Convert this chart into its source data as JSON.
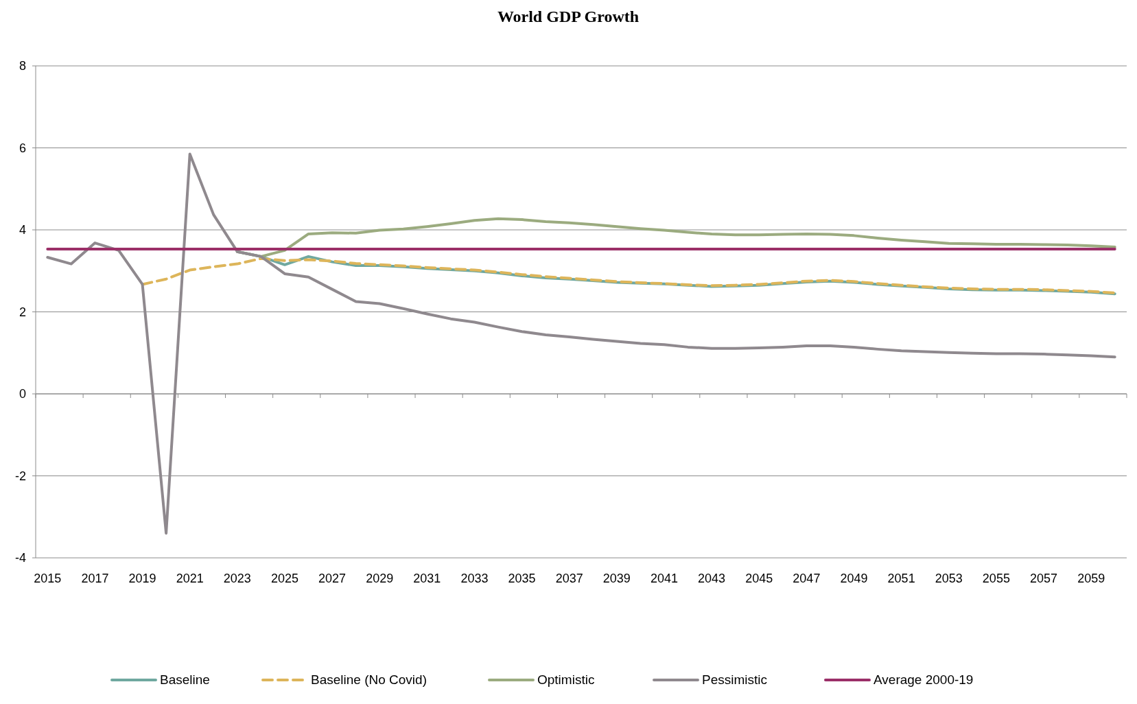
{
  "chart_data": {
    "type": "line",
    "title": "World GDP Growth",
    "categories": [
      "2015",
      null,
      "2017",
      null,
      "2019",
      null,
      "2021",
      null,
      "2023",
      null,
      "2025",
      null,
      "2027",
      null,
      "2029",
      null,
      "2031",
      null,
      "2033",
      null,
      "2035",
      null,
      "2037",
      null,
      "2039",
      null,
      "2041",
      null,
      "2043",
      null,
      "2045",
      null,
      "2047",
      null,
      "2049",
      null,
      "2051",
      null,
      "2053",
      null,
      "2055",
      null,
      "2057",
      null,
      "2059",
      null
    ],
    "ylim": [
      -4,
      8
    ],
    "yticks": [
      -4,
      -2,
      0,
      2,
      4,
      6,
      8
    ],
    "grid": "y",
    "legend": "bottom",
    "marker": "none",
    "series": [
      {
        "name": "Baseline",
        "color": "#6fa8a0",
        "values": [
          null,
          null,
          null,
          null,
          null,
          null,
          null,
          null,
          3.47,
          3.35,
          3.15,
          3.35,
          3.22,
          3.13,
          3.13,
          3.1,
          3.06,
          3.03,
          3.0,
          2.95,
          2.88,
          2.83,
          2.8,
          2.76,
          2.72,
          2.7,
          2.68,
          2.65,
          2.62,
          2.63,
          2.65,
          2.69,
          2.73,
          2.75,
          2.72,
          2.67,
          2.63,
          2.6,
          2.56,
          2.54,
          2.53,
          2.53,
          2.52,
          2.5,
          2.48,
          2.44
        ]
      },
      {
        "name": "Baseline (No Covid)",
        "color": "#ddb55a",
        "line_style": "dashed",
        "values": [
          null,
          null,
          null,
          null,
          2.67,
          2.8,
          3.02,
          3.1,
          3.17,
          3.3,
          3.25,
          3.27,
          3.24,
          3.18,
          3.15,
          3.12,
          3.08,
          3.05,
          3.02,
          2.97,
          2.91,
          2.86,
          2.82,
          2.78,
          2.74,
          2.71,
          2.69,
          2.66,
          2.64,
          2.65,
          2.67,
          2.71,
          2.75,
          2.77,
          2.74,
          2.69,
          2.65,
          2.61,
          2.58,
          2.56,
          2.55,
          2.55,
          2.54,
          2.52,
          2.5,
          2.46
        ]
      },
      {
        "name": "Optimistic",
        "color": "#9bab7f",
        "values": [
          null,
          null,
          null,
          null,
          null,
          null,
          null,
          null,
          3.47,
          3.35,
          3.5,
          3.9,
          3.93,
          3.92,
          3.99,
          4.02,
          4.08,
          4.15,
          4.23,
          4.27,
          4.25,
          4.2,
          4.17,
          4.13,
          4.08,
          4.03,
          3.99,
          3.94,
          3.9,
          3.88,
          3.88,
          3.89,
          3.9,
          3.89,
          3.86,
          3.8,
          3.75,
          3.71,
          3.67,
          3.66,
          3.65,
          3.65,
          3.64,
          3.63,
          3.61,
          3.58
        ]
      },
      {
        "name": "Pessimistic",
        "color": "#8f898e",
        "values": [
          3.33,
          3.17,
          3.68,
          3.5,
          2.67,
          -3.4,
          5.85,
          4.37,
          3.47,
          3.35,
          2.93,
          2.85,
          2.55,
          2.25,
          2.2,
          2.08,
          1.95,
          1.83,
          1.75,
          1.63,
          1.52,
          1.44,
          1.39,
          1.33,
          1.28,
          1.23,
          1.2,
          1.14,
          1.11,
          1.11,
          1.12,
          1.14,
          1.17,
          1.17,
          1.14,
          1.09,
          1.05,
          1.03,
          1.01,
          0.99,
          0.98,
          0.98,
          0.97,
          0.95,
          0.93,
          0.9
        ]
      },
      {
        "name": "Average 2000-19",
        "color": "#9b2f68",
        "values": [
          3.53,
          3.53,
          3.53,
          3.53,
          3.53,
          3.53,
          3.53,
          3.53,
          3.53,
          3.53,
          3.53,
          3.53,
          3.53,
          3.53,
          3.53,
          3.53,
          3.53,
          3.53,
          3.53,
          3.53,
          3.53,
          3.53,
          3.53,
          3.53,
          3.53,
          3.53,
          3.53,
          3.53,
          3.53,
          3.53,
          3.53,
          3.53,
          3.53,
          3.53,
          3.53,
          3.53,
          3.53,
          3.53,
          3.53,
          3.53,
          3.53,
          3.53,
          3.53,
          3.53,
          3.53,
          3.53
        ]
      }
    ]
  }
}
